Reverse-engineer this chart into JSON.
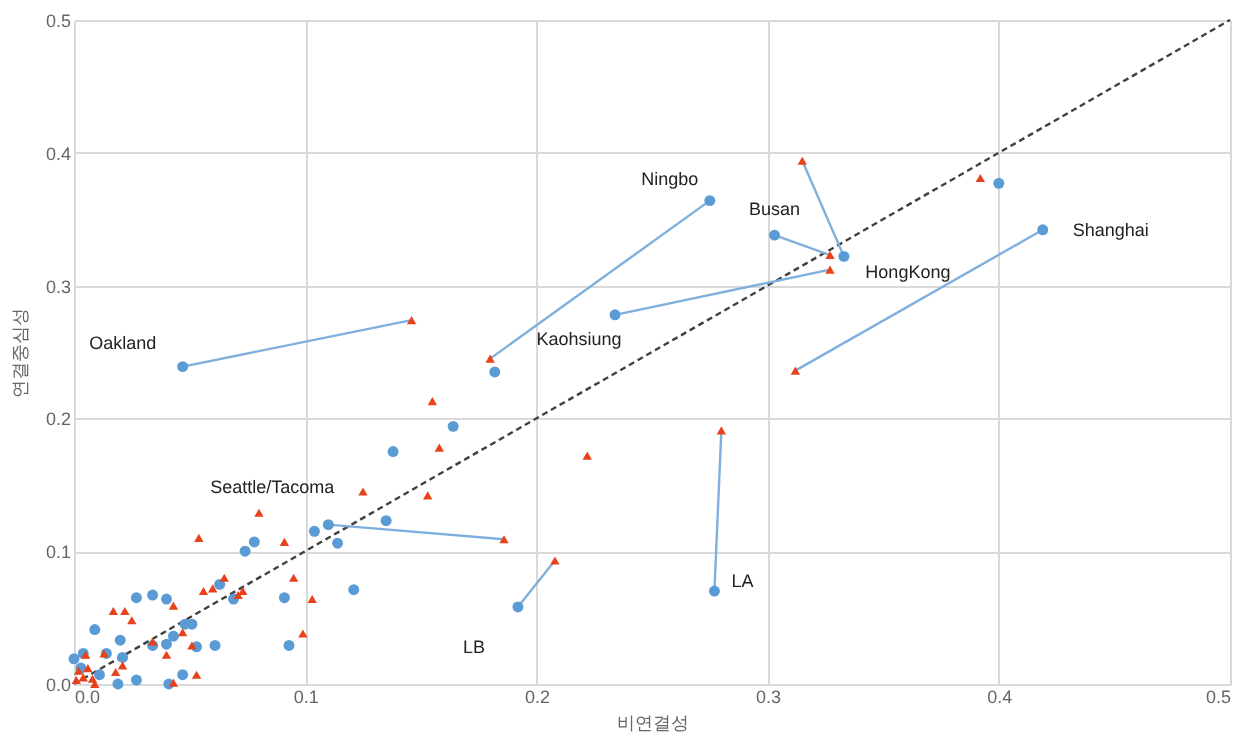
{
  "chart_data": {
    "type": "scatter",
    "xlabel": "비연결성",
    "ylabel": "연결중심성",
    "xlim": [
      0,
      0.5
    ],
    "ylim": [
      0,
      0.5
    ],
    "xticks": [
      {
        "value": 0,
        "label": "0.0"
      },
      0.1,
      0.2,
      0.3,
      0.4,
      0.5
    ],
    "yticks": [
      {
        "value": 0,
        "label": "0.0"
      },
      0.1,
      0.2,
      0.3,
      0.4,
      0.5
    ],
    "grid": true,
    "series": [
      {
        "type": "line",
        "color": "#404040",
        "line_style": "dashed",
        "marker": "none",
        "x": [
          0,
          0.5
        ],
        "values": [
          0,
          0.5
        ]
      },
      {
        "type": "line",
        "color": "#7fb0dd",
        "marker": "none",
        "x": [
          0.146,
          0.047
        ],
        "values": [
          0.274,
          0.239
        ]
      },
      {
        "type": "line",
        "color": "#7fb0dd",
        "marker": "none",
        "x": [
          0.18,
          0.275
        ],
        "values": [
          0.245,
          0.364
        ]
      },
      {
        "type": "line",
        "color": "#7fb0dd",
        "marker": "none",
        "x": [
          0.327,
          0.303
        ],
        "values": [
          0.323,
          0.338
        ]
      },
      {
        "type": "line",
        "color": "#7fb0dd",
        "marker": "none",
        "x": [
          0.315,
          0.333
        ],
        "values": [
          0.394,
          0.322
        ]
      },
      {
        "type": "line",
        "color": "#7fb0dd",
        "marker": "none",
        "x": [
          0.327,
          0.234
        ],
        "values": [
          0.312,
          0.278
        ]
      },
      {
        "type": "line",
        "color": "#7fb0dd",
        "marker": "none",
        "x": [
          0.312,
          0.419
        ],
        "values": [
          0.236,
          0.342
        ]
      },
      {
        "type": "line",
        "color": "#7fb0dd",
        "marker": "none",
        "x": [
          0.186,
          0.11
        ],
        "values": [
          0.109,
          0.12
        ]
      },
      {
        "type": "line",
        "color": "#7fb0dd",
        "marker": "none",
        "x": [
          0.208,
          0.192
        ],
        "values": [
          0.093,
          0.058
        ]
      },
      {
        "type": "line",
        "color": "#7fb0dd",
        "marker": "none",
        "x": [
          0.28,
          0.277
        ],
        "values": [
          0.191,
          0.07
        ]
      },
      {
        "color": "#5b9bd5",
        "marker": "circle",
        "x": [
          0.047,
          0.275,
          0.182,
          0.303,
          0.333,
          0.234,
          0.419,
          0.4,
          0.11,
          0.192,
          0.277,
          0.164,
          0.138,
          0.135,
          0.104,
          0.114,
          0.121,
          0.078,
          0.074,
          0.069,
          0.063,
          0.061,
          0.091,
          0.093,
          0.027,
          0.034,
          0.04,
          0.009,
          0.048,
          0.051,
          0.043,
          0.04,
          0.034,
          0.053,
          0.02,
          0.014,
          0.021,
          0.004,
          0.027,
          0.047,
          0.019,
          0.041,
          0.0,
          0.011,
          0.003
        ],
        "values": [
          0.239,
          0.364,
          0.235,
          0.338,
          0.322,
          0.278,
          0.342,
          0.377,
          0.12,
          0.058,
          0.07,
          0.194,
          0.175,
          0.123,
          0.115,
          0.106,
          0.071,
          0.107,
          0.1,
          0.064,
          0.075,
          0.029,
          0.065,
          0.029,
          0.065,
          0.067,
          0.064,
          0.041,
          0.045,
          0.045,
          0.036,
          0.03,
          0.029,
          0.028,
          0.033,
          0.023,
          0.02,
          0.023,
          0.003,
          0.007,
          0.0,
          0.0,
          0.019,
          0.007,
          0.012
        ]
      },
      {
        "color": "#e8421c",
        "marker": "triangle",
        "x": [
          0.146,
          0.18,
          0.327,
          0.315,
          0.327,
          0.312,
          0.392,
          0.186,
          0.208,
          0.28,
          0.222,
          0.155,
          0.158,
          0.153,
          0.125,
          0.08,
          0.054,
          0.091,
          0.095,
          0.103,
          0.099,
          0.065,
          0.06,
          0.056,
          0.073,
          0.071,
          0.043,
          0.025,
          0.017,
          0.022,
          0.047,
          0.034,
          0.04,
          0.051,
          0.053,
          0.043,
          0.013,
          0.021,
          0.018,
          0.005,
          0.009,
          0.002,
          0.004,
          0.006,
          0.001,
          0.008
        ],
        "values": [
          0.274,
          0.245,
          0.323,
          0.394,
          0.312,
          0.236,
          0.381,
          0.109,
          0.093,
          0.191,
          0.172,
          0.213,
          0.178,
          0.142,
          0.145,
          0.129,
          0.11,
          0.107,
          0.08,
          0.064,
          0.038,
          0.08,
          0.072,
          0.07,
          0.07,
          0.067,
          0.059,
          0.048,
          0.055,
          0.055,
          0.039,
          0.032,
          0.022,
          0.029,
          0.007,
          0.001,
          0.023,
          0.014,
          0.009,
          0.022,
          0.0,
          0.01,
          0.005,
          0.012,
          0.003,
          0.004
        ]
      }
    ],
    "annotations": [
      {
        "text": "Oakland",
        "x": 0.047,
        "y": 0.239
      },
      {
        "text": "Ningbo",
        "x": 0.275,
        "y": 0.364
      },
      {
        "text": "Busan",
        "x": 0.303,
        "y": 0.338
      },
      {
        "text": "HongKong",
        "x": 0.333,
        "y": 0.322
      },
      {
        "text": "Kaohsiung",
        "x": 0.234,
        "y": 0.278
      },
      {
        "text": "Shanghai",
        "x": 0.419,
        "y": 0.342
      },
      {
        "text": "Seattle/Tacoma",
        "x": 0.11,
        "y": 0.12
      },
      {
        "text": "LB",
        "x": 0.192,
        "y": 0.058
      },
      {
        "text": "LA",
        "x": 0.277,
        "y": 0.07
      }
    ]
  }
}
